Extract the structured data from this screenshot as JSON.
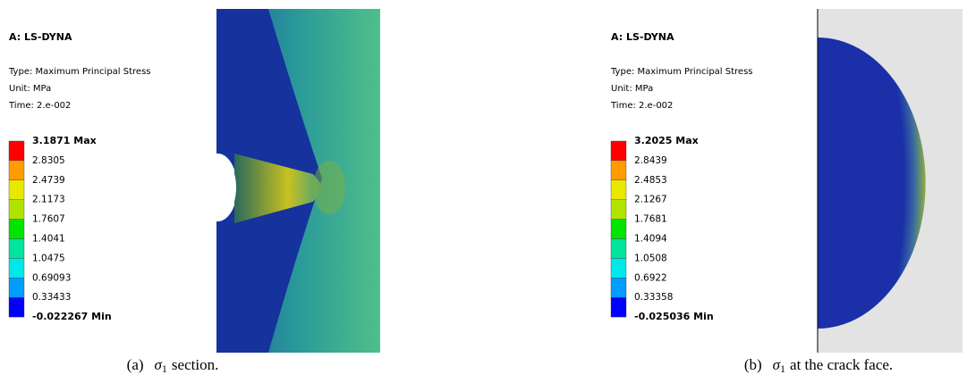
{
  "panels": [
    {
      "header": "A: LS-DYNA",
      "type": "Type: Maximum Principal Stress",
      "unit": "Unit: MPa",
      "time": "Time: 2.e-002",
      "legend": [
        "3.1871 Max",
        "2.8305",
        "2.4739",
        "2.1173",
        "1.7607",
        "1.4041",
        "1.0475",
        "0.69093",
        "0.33433",
        "-0.022267 Min"
      ],
      "caption": {
        "label": "(a)",
        "symbol": "σ",
        "sub": "1",
        "text": "section."
      }
    },
    {
      "header": "A: LS-DYNA",
      "type": "Type: Maximum Principal Stress",
      "unit": "Unit: MPa",
      "time": "Time: 2.e-002",
      "legend": [
        "3.2025 Max",
        "2.8439",
        "2.4853",
        "2.1267",
        "1.7681",
        "1.4094",
        "1.0508",
        "0.6922",
        "0.33358",
        "-0.025036 Min"
      ],
      "caption": {
        "label": "(b)",
        "symbol": "σ",
        "sub": "1",
        "text": "at the crack face."
      }
    }
  ]
}
